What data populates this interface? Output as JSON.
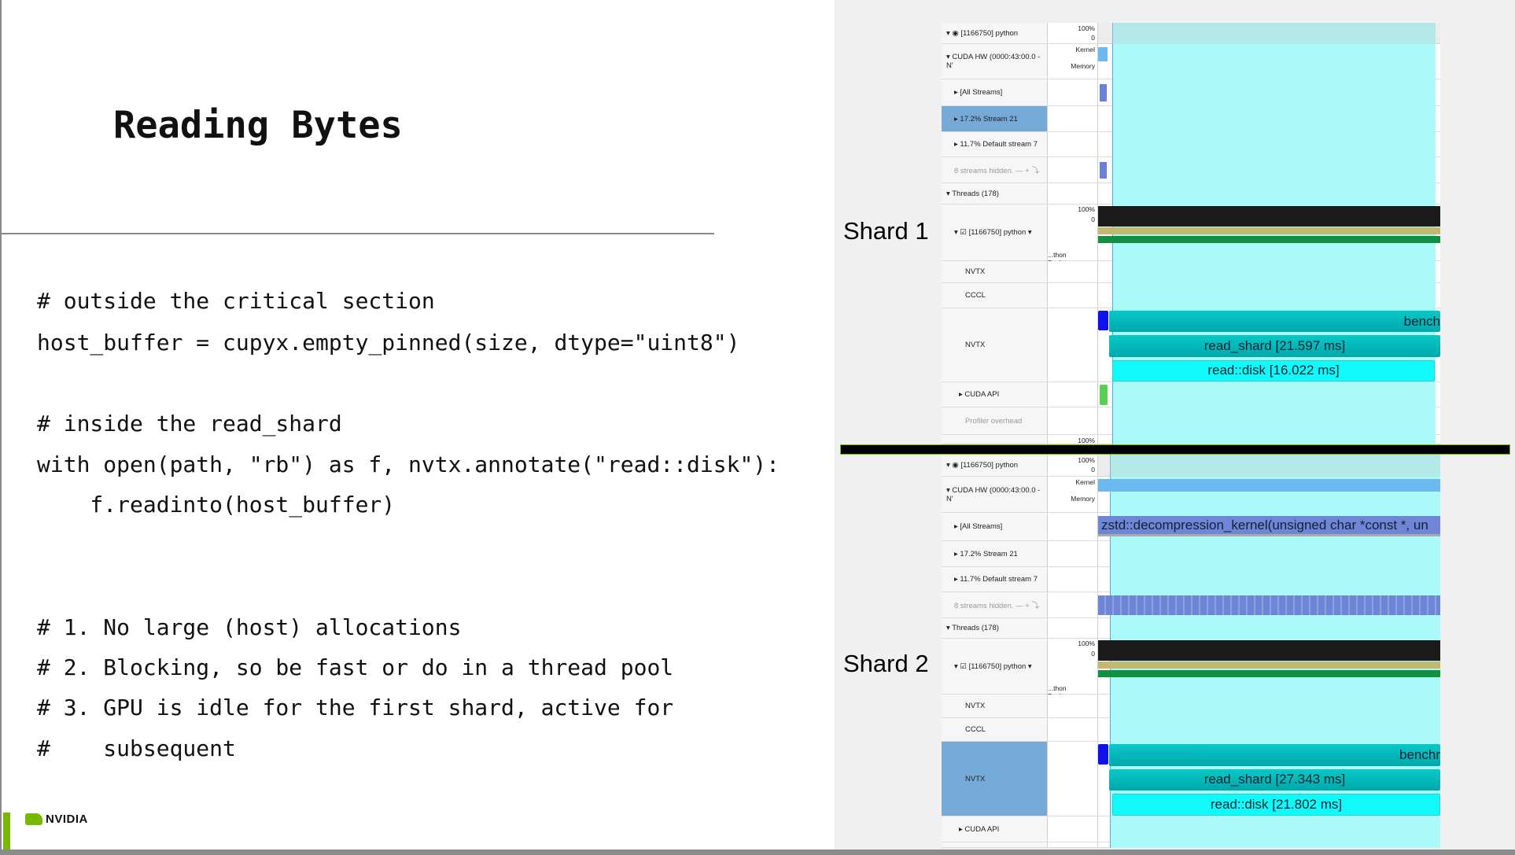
{
  "slide": {
    "title": "Reading Bytes",
    "code": [
      "# outside the critical section",
      "host_buffer = cupyx.empty_pinned(size, dtype=\"uint8\")",
      "# inside the read_shard",
      "with open(path, \"rb\") as f, nvtx.annotate(\"read::disk\"):",
      "    f.readinto(host_buffer)",
      "# 1. No large (host) allocations",
      "# 2. Blocking, so be fast or do in a thread pool",
      "# 3. GPU is idle for the first shard, active for",
      "#    subsequent"
    ],
    "logo": "NVIDIA",
    "brand_color": "#76b900"
  },
  "shards": [
    {
      "label": "Shard 1",
      "rows": [
        {
          "label": "▾ ◉ [1166750] python",
          "mini": [
            "100%",
            "0"
          ]
        },
        {
          "label": "▾ CUDA HW (0000:43:00.0 - N'",
          "mini": [
            "Kernel",
            "Memory"
          ]
        },
        {
          "label": "▸ [All Streams]",
          "mini": []
        },
        {
          "label": "▸ 17.2% Stream 21",
          "mini": [],
          "selected": true
        },
        {
          "label": "▸ 11.7% Default stream 7",
          "mini": []
        },
        {
          "label": "8 streams hidden. — + ⤵",
          "mini": [],
          "dim": true
        },
        {
          "label": "▾ Threads (178)",
          "mini": []
        },
        {
          "label": "▾ ☑ [1166750] python ▾",
          "mini": [
            "100%",
            "0",
            "...thon Backtrace"
          ]
        },
        {
          "label": "NVTX",
          "mini": []
        },
        {
          "label": "CCCL",
          "mini": []
        },
        {
          "label": "NVTX",
          "mini": []
        },
        {
          "label": "▸ CUDA API",
          "mini": []
        },
        {
          "label": "Profiler overhead",
          "mini": [],
          "dim": true
        },
        {
          "label": "",
          "mini": [
            "100%"
          ]
        }
      ],
      "bars": {
        "bench": "bench",
        "read_shard": "read_shard [21.597 ms]",
        "read_disk": "read::disk [16.022 ms]"
      }
    },
    {
      "label": "Shard 2",
      "rows": [
        {
          "label": "▾ ◉ [1166750] python",
          "mini": [
            "100%",
            "0"
          ]
        },
        {
          "label": "▾ CUDA HW (0000:43:00.0 - N'",
          "mini": [
            "Kernel",
            "Memory"
          ]
        },
        {
          "label": "▸ [All Streams]",
          "mini": []
        },
        {
          "label": "▸ 17.2% Stream 21",
          "mini": []
        },
        {
          "label": "▸ 11.7% Default stream 7",
          "mini": []
        },
        {
          "label": "8 streams hidden. — + ⤵",
          "mini": [],
          "dim": true
        },
        {
          "label": "▾ Threads (178)",
          "mini": []
        },
        {
          "label": "▾ ☑ [1166750] python ▾",
          "mini": [
            "100%",
            "0",
            "...thon Backtrace"
          ]
        },
        {
          "label": "NVTX",
          "mini": []
        },
        {
          "label": "CCCL",
          "mini": []
        },
        {
          "label": "NVTX",
          "mini": [],
          "selected": true
        },
        {
          "label": "▸ CUDA API",
          "mini": []
        },
        {
          "label": "",
          "mini": []
        }
      ],
      "kernel": "zstd::decompression_kernel(unsigned char *const *, un",
      "bars": {
        "bench": "benchr",
        "read_shard": "read_shard [27.343 ms]",
        "read_disk": "read::disk [21.802 ms]"
      }
    }
  ]
}
